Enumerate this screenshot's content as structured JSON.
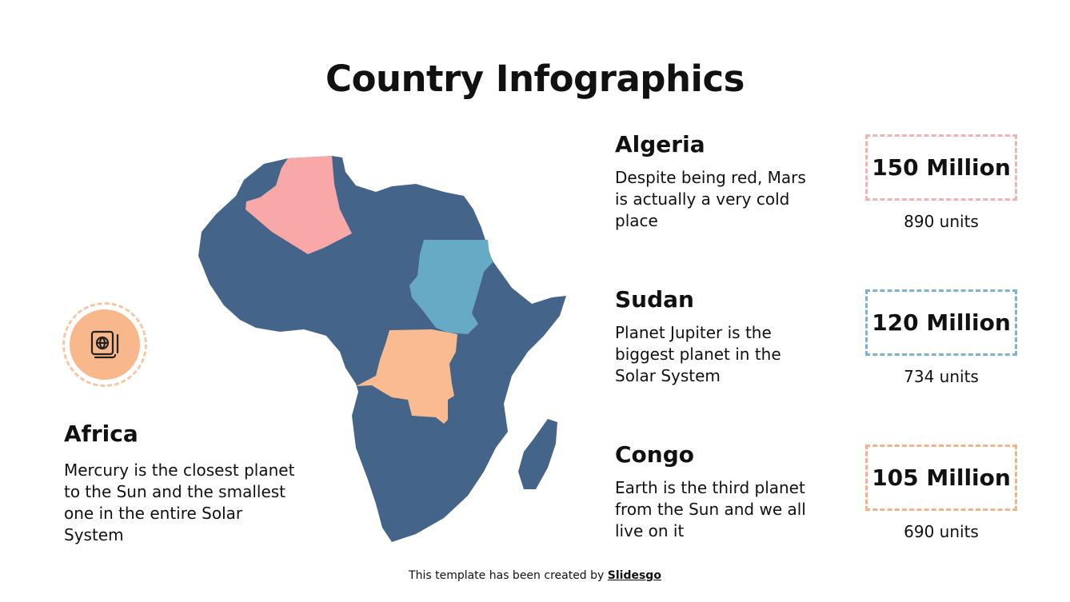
{
  "title": "Country Infographics",
  "africa": {
    "title": "Africa",
    "description": "Mercury is the closest planet to the Sun and the smallest one in the entire Solar System",
    "icon": "passport-globe-icon"
  },
  "countries": [
    {
      "name": "Algeria",
      "description": "Despite being red, Mars is actually a very cold place",
      "value": "150 Million",
      "units": "890 units",
      "color": "#f9a8a8"
    },
    {
      "name": "Sudan",
      "description": "Planet Jupiter is the biggest planet in the Solar System",
      "value": "120 Million",
      "units": "734 units",
      "color": "#67aac5"
    },
    {
      "name": "Congo",
      "description": "Earth is the third planet from the Sun and we all live on it",
      "value": "105 Million",
      "units": "690 units",
      "color": "#f9bb8f"
    }
  ],
  "map_color": "#44648a",
  "footer": {
    "text": "This template has been created by ",
    "brand": "Slidesgo"
  }
}
